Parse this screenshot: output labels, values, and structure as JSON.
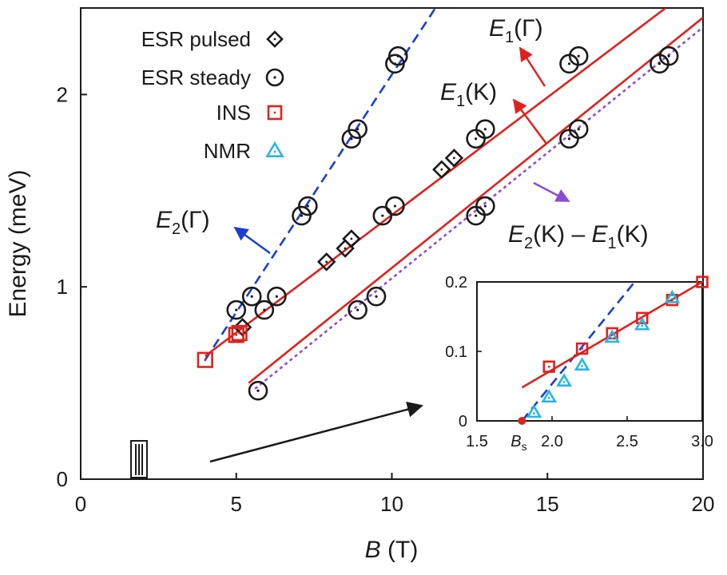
{
  "chart_data": [
    {
      "type": "scatter",
      "xlabel": {
        "italic": "B",
        "rest": " (T)"
      },
      "ylabel": "Energy (meV)",
      "xlim": [
        0,
        20
      ],
      "ylim": [
        0,
        2.45
      ],
      "xticks": [
        0,
        5,
        10,
        15,
        20
      ],
      "yticks": [
        0,
        1,
        2
      ],
      "xtick_labels": [
        "0",
        "5",
        "10",
        "15",
        "20"
      ],
      "ytick_labels": [
        "0",
        "1",
        "2"
      ],
      "legend": {
        "placement": "top-left",
        "entries": [
          {
            "label": "ESR pulsed",
            "marker": "diamond",
            "color": "#1a1a1a"
          },
          {
            "label": "ESR steady",
            "marker": "circle-dot",
            "color": "#1a1a1a"
          },
          {
            "label": "INS",
            "marker": "square-dot",
            "color": "#e0201c"
          },
          {
            "label": "NMR",
            "marker": "triangle-dot",
            "color": "#29b6e0"
          }
        ]
      },
      "lines": [
        {
          "id": "E2G",
          "style": "dashed",
          "color": "#1a3fd1",
          "points": [
            [
              4.0,
              0.62
            ],
            [
              11.4,
              2.45
            ]
          ]
        },
        {
          "id": "E1G",
          "style": "solid",
          "color": "#e0201c",
          "points": [
            [
              4.0,
              0.64
            ],
            [
              18.8,
              2.45
            ]
          ]
        },
        {
          "id": "E1K",
          "style": "solid",
          "color": "#e0201c",
          "points": [
            [
              5.4,
              0.5
            ],
            [
              20.0,
              2.4
            ]
          ]
        },
        {
          "id": "E2K_minus_E1K",
          "style": "dotted",
          "color": "#8a4fd0",
          "points": [
            [
              5.6,
              0.47
            ],
            [
              20.0,
              2.35
            ]
          ]
        }
      ],
      "series": [
        {
          "name": "ESR steady",
          "marker": "circle-dot",
          "color": "#1a1a1a",
          "points": [
            [
              5.0,
              0.88
            ],
            [
              5.5,
              0.95
            ],
            [
              5.9,
              0.88
            ],
            [
              6.3,
              0.95
            ],
            [
              7.1,
              1.37
            ],
            [
              7.3,
              1.42
            ],
            [
              8.7,
              1.77
            ],
            [
              8.9,
              1.82
            ],
            [
              10.1,
              2.16
            ],
            [
              10.2,
              2.2
            ],
            [
              8.9,
              0.88
            ],
            [
              9.5,
              0.95
            ],
            [
              9.7,
              1.37
            ],
            [
              10.1,
              1.42
            ],
            [
              12.7,
              1.77
            ],
            [
              13.0,
              1.82
            ],
            [
              15.7,
              2.16
            ],
            [
              16.0,
              2.2
            ],
            [
              5.7,
              0.46
            ],
            [
              12.7,
              1.37
            ],
            [
              13.0,
              1.42
            ],
            [
              15.7,
              1.77
            ],
            [
              16.0,
              1.82
            ],
            [
              18.6,
              2.16
            ],
            [
              18.9,
              2.2
            ]
          ]
        },
        {
          "name": "ESR pulsed",
          "marker": "diamond",
          "color": "#1a1a1a",
          "points": [
            [
              7.9,
              1.13
            ],
            [
              8.5,
              1.2
            ],
            [
              8.7,
              1.25
            ],
            [
              11.6,
              1.61
            ],
            [
              12.0,
              1.67
            ],
            [
              5.2,
              0.79
            ]
          ]
        },
        {
          "name": "INS",
          "marker": "square-dot",
          "color": "#e0201c",
          "points": [
            [
              4.0,
              0.62
            ],
            [
              5.0,
              0.75
            ],
            [
              5.1,
              0.76
            ]
          ]
        }
      ],
      "annotations": [
        {
          "label_main": "E",
          "label_sub": "1",
          "label_paren": "(Γ)",
          "color": "#e0201c"
        },
        {
          "label_main": "E",
          "label_sub": "1",
          "label_paren": "(K)",
          "color": "#e0201c"
        },
        {
          "label_main": "E",
          "label_sub": "2",
          "label_paren": "(Γ)",
          "color": "#1a3fd1"
        },
        {
          "label_main": "E",
          "label_sub": "2",
          "label_paren": "(K) – ",
          "label_main2": "E",
          "label_sub2": "1",
          "label_paren2": "(K)",
          "color": "#8a4fd0"
        }
      ]
    },
    {
      "type": "scatter",
      "role": "inset",
      "xlim": [
        1.5,
        3.0
      ],
      "ylim": [
        0,
        0.2
      ],
      "xticks": [
        1.5,
        2.0,
        2.5,
        3.0
      ],
      "yticks": [
        0,
        0.1,
        0.2
      ],
      "xtick_labels": [
        "1.5",
        "2.0",
        "2.5",
        "3.0"
      ],
      "ytick_labels": [
        "0",
        "0.1",
        "0.2"
      ],
      "special_tick": {
        "x": 1.8,
        "label_main": "B",
        "label_sub": "s",
        "color": "#e0201c"
      },
      "lines": [
        {
          "id": "inset-dashed",
          "style": "dashed",
          "color": "#1a3fd1",
          "points": [
            [
              1.8,
              0.0
            ],
            [
              2.55,
              0.2
            ]
          ]
        },
        {
          "id": "inset-solid",
          "style": "solid",
          "color": "#e0201c",
          "points": [
            [
              1.8,
              0.048
            ],
            [
              3.0,
              0.2
            ]
          ]
        }
      ],
      "series": [
        {
          "name": "INS",
          "marker": "square-dot",
          "color": "#e0201c",
          "points": [
            [
              1.98,
              0.078
            ],
            [
              2.2,
              0.104
            ],
            [
              2.4,
              0.126
            ],
            [
              2.6,
              0.148
            ],
            [
              2.8,
              0.174
            ],
            [
              3.0,
              0.2
            ]
          ]
        },
        {
          "name": "NMR",
          "marker": "triangle-dot",
          "color": "#29b6e0",
          "points": [
            [
              1.88,
              0.012
            ],
            [
              1.98,
              0.034
            ],
            [
              2.08,
              0.057
            ],
            [
              2.2,
              0.08
            ],
            [
              2.4,
              0.12
            ],
            [
              2.6,
              0.138
            ],
            [
              2.8,
              0.177
            ]
          ]
        }
      ]
    }
  ]
}
